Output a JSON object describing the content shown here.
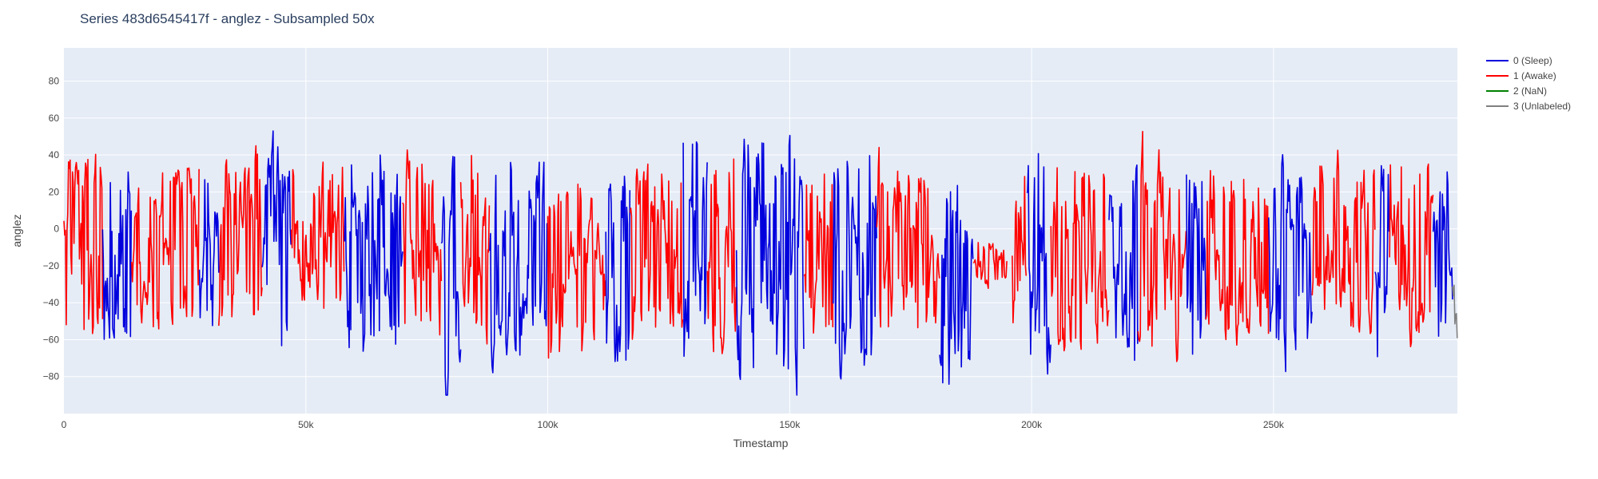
{
  "chart_data": {
    "type": "line",
    "title": "Series 483d6545417f - anglez - Subsampled 50x",
    "xlabel": "Timestamp",
    "ylabel": "anglez",
    "xlim": [
      0,
      288000
    ],
    "ylim": [
      -100,
      98
    ],
    "x_ticks": [
      0,
      50000,
      100000,
      150000,
      200000,
      250000
    ],
    "x_tick_labels": [
      "0",
      "50k",
      "100k",
      "150k",
      "200k",
      "250k"
    ],
    "y_ticks": [
      -80,
      -60,
      -40,
      -20,
      0,
      20,
      40,
      60,
      80
    ],
    "y_tick_labels": [
      "−80",
      "−60",
      "−40",
      "−20",
      "0",
      "20",
      "40",
      "60",
      "80"
    ],
    "grid": true,
    "legend_position": "right",
    "plot_background": "#e5ecf6",
    "series": [
      {
        "name": "0 (Sleep)",
        "color": "#0000dd"
      },
      {
        "name": "1 (Awake)",
        "color": "#ff0000"
      },
      {
        "name": "2 (NaN)",
        "color": "#008000"
      },
      {
        "name": "3 (Unlabeled)",
        "color": "#808080"
      }
    ],
    "segments": [
      {
        "series": 1,
        "x": [
          0,
          8000
        ],
        "mean": -10,
        "amp": 48
      },
      {
        "series": 0,
        "x": [
          8000,
          14000
        ],
        "mean": -15,
        "amp": 50
      },
      {
        "series": 1,
        "x": [
          14000,
          28000
        ],
        "mean": -8,
        "amp": 45
      },
      {
        "series": 0,
        "x": [
          28000,
          32000
        ],
        "mean": -15,
        "amp": 50
      },
      {
        "series": 1,
        "x": [
          32000,
          41000
        ],
        "mean": -8,
        "amp": 50
      },
      {
        "series": 0,
        "x": [
          41000,
          47000
        ],
        "mean": -10,
        "amp": 55
      },
      {
        "series": 1,
        "x": [
          47000,
          58000
        ],
        "mean": -8,
        "amp": 42
      },
      {
        "series": 0,
        "x": [
          58000,
          70000
        ],
        "mean": -12,
        "amp": 55
      },
      {
        "series": 1,
        "x": [
          70000,
          78000
        ],
        "mean": -15,
        "amp": 50
      },
      {
        "series": 0,
        "x": [
          78000,
          82000
        ],
        "mean": -20,
        "amp": 60
      },
      {
        "series": 1,
        "x": [
          82000,
          88000
        ],
        "mean": -10,
        "amp": 50
      },
      {
        "series": 0,
        "x": [
          88000,
          100000
        ],
        "mean": -15,
        "amp": 55
      },
      {
        "series": 1,
        "x": [
          100000,
          112000
        ],
        "mean": -20,
        "amp": 50
      },
      {
        "series": 0,
        "x": [
          112000,
          117000
        ],
        "mean": -25,
        "amp": 55
      },
      {
        "series": 1,
        "x": [
          117000,
          128000
        ],
        "mean": -15,
        "amp": 45
      },
      {
        "series": 0,
        "x": [
          128000,
          133000
        ],
        "mean": -10,
        "amp": 60
      },
      {
        "series": 1,
        "x": [
          133000,
          139000
        ],
        "mean": -12,
        "amp": 50
      },
      {
        "series": 0,
        "x": [
          139000,
          153000
        ],
        "mean": -15,
        "amp": 65
      },
      {
        "series": 1,
        "x": [
          153000,
          159000
        ],
        "mean": -20,
        "amp": 50
      },
      {
        "series": 0,
        "x": [
          159000,
          168000
        ],
        "mean": -20,
        "amp": 60
      },
      {
        "series": 1,
        "x": [
          168000,
          181000
        ],
        "mean": -10,
        "amp": 45
      },
      {
        "series": 0,
        "x": [
          181000,
          188000
        ],
        "mean": -25,
        "amp": 60
      },
      {
        "series": 1,
        "x": [
          188000,
          195000
        ],
        "mean": -18,
        "amp": 12
      },
      {
        "series": 1,
        "x": [
          196000,
          199000
        ],
        "mean": -20,
        "amp": 60
      },
      {
        "series": 0,
        "x": [
          199000,
          204000
        ],
        "mean": -15,
        "amp": 60
      },
      {
        "series": 1,
        "x": [
          204000,
          216000
        ],
        "mean": -15,
        "amp": 50
      },
      {
        "series": 0,
        "x": [
          216000,
          222000
        ],
        "mean": -20,
        "amp": 55
      },
      {
        "series": 1,
        "x": [
          222000,
          232000
        ],
        "mean": -15,
        "amp": 50
      },
      {
        "series": 0,
        "x": [
          232000,
          236000
        ],
        "mean": -20,
        "amp": 50
      },
      {
        "series": 1,
        "x": [
          236000,
          249000
        ],
        "mean": -12,
        "amp": 45
      },
      {
        "series": 0,
        "x": [
          249000,
          258000
        ],
        "mean": -15,
        "amp": 55
      },
      {
        "series": 1,
        "x": [
          258000,
          271000
        ],
        "mean": -10,
        "amp": 45
      },
      {
        "series": 0,
        "x": [
          271000,
          274000
        ],
        "mean": -20,
        "amp": 55
      },
      {
        "series": 1,
        "x": [
          274000,
          283000
        ],
        "mean": -10,
        "amp": 45
      },
      {
        "series": 0,
        "x": [
          283000,
          287000
        ],
        "mean": -15,
        "amp": 50
      },
      {
        "series": 3,
        "x": [
          287000,
          288000
        ],
        "mean": -35,
        "amp": 25
      }
    ]
  }
}
